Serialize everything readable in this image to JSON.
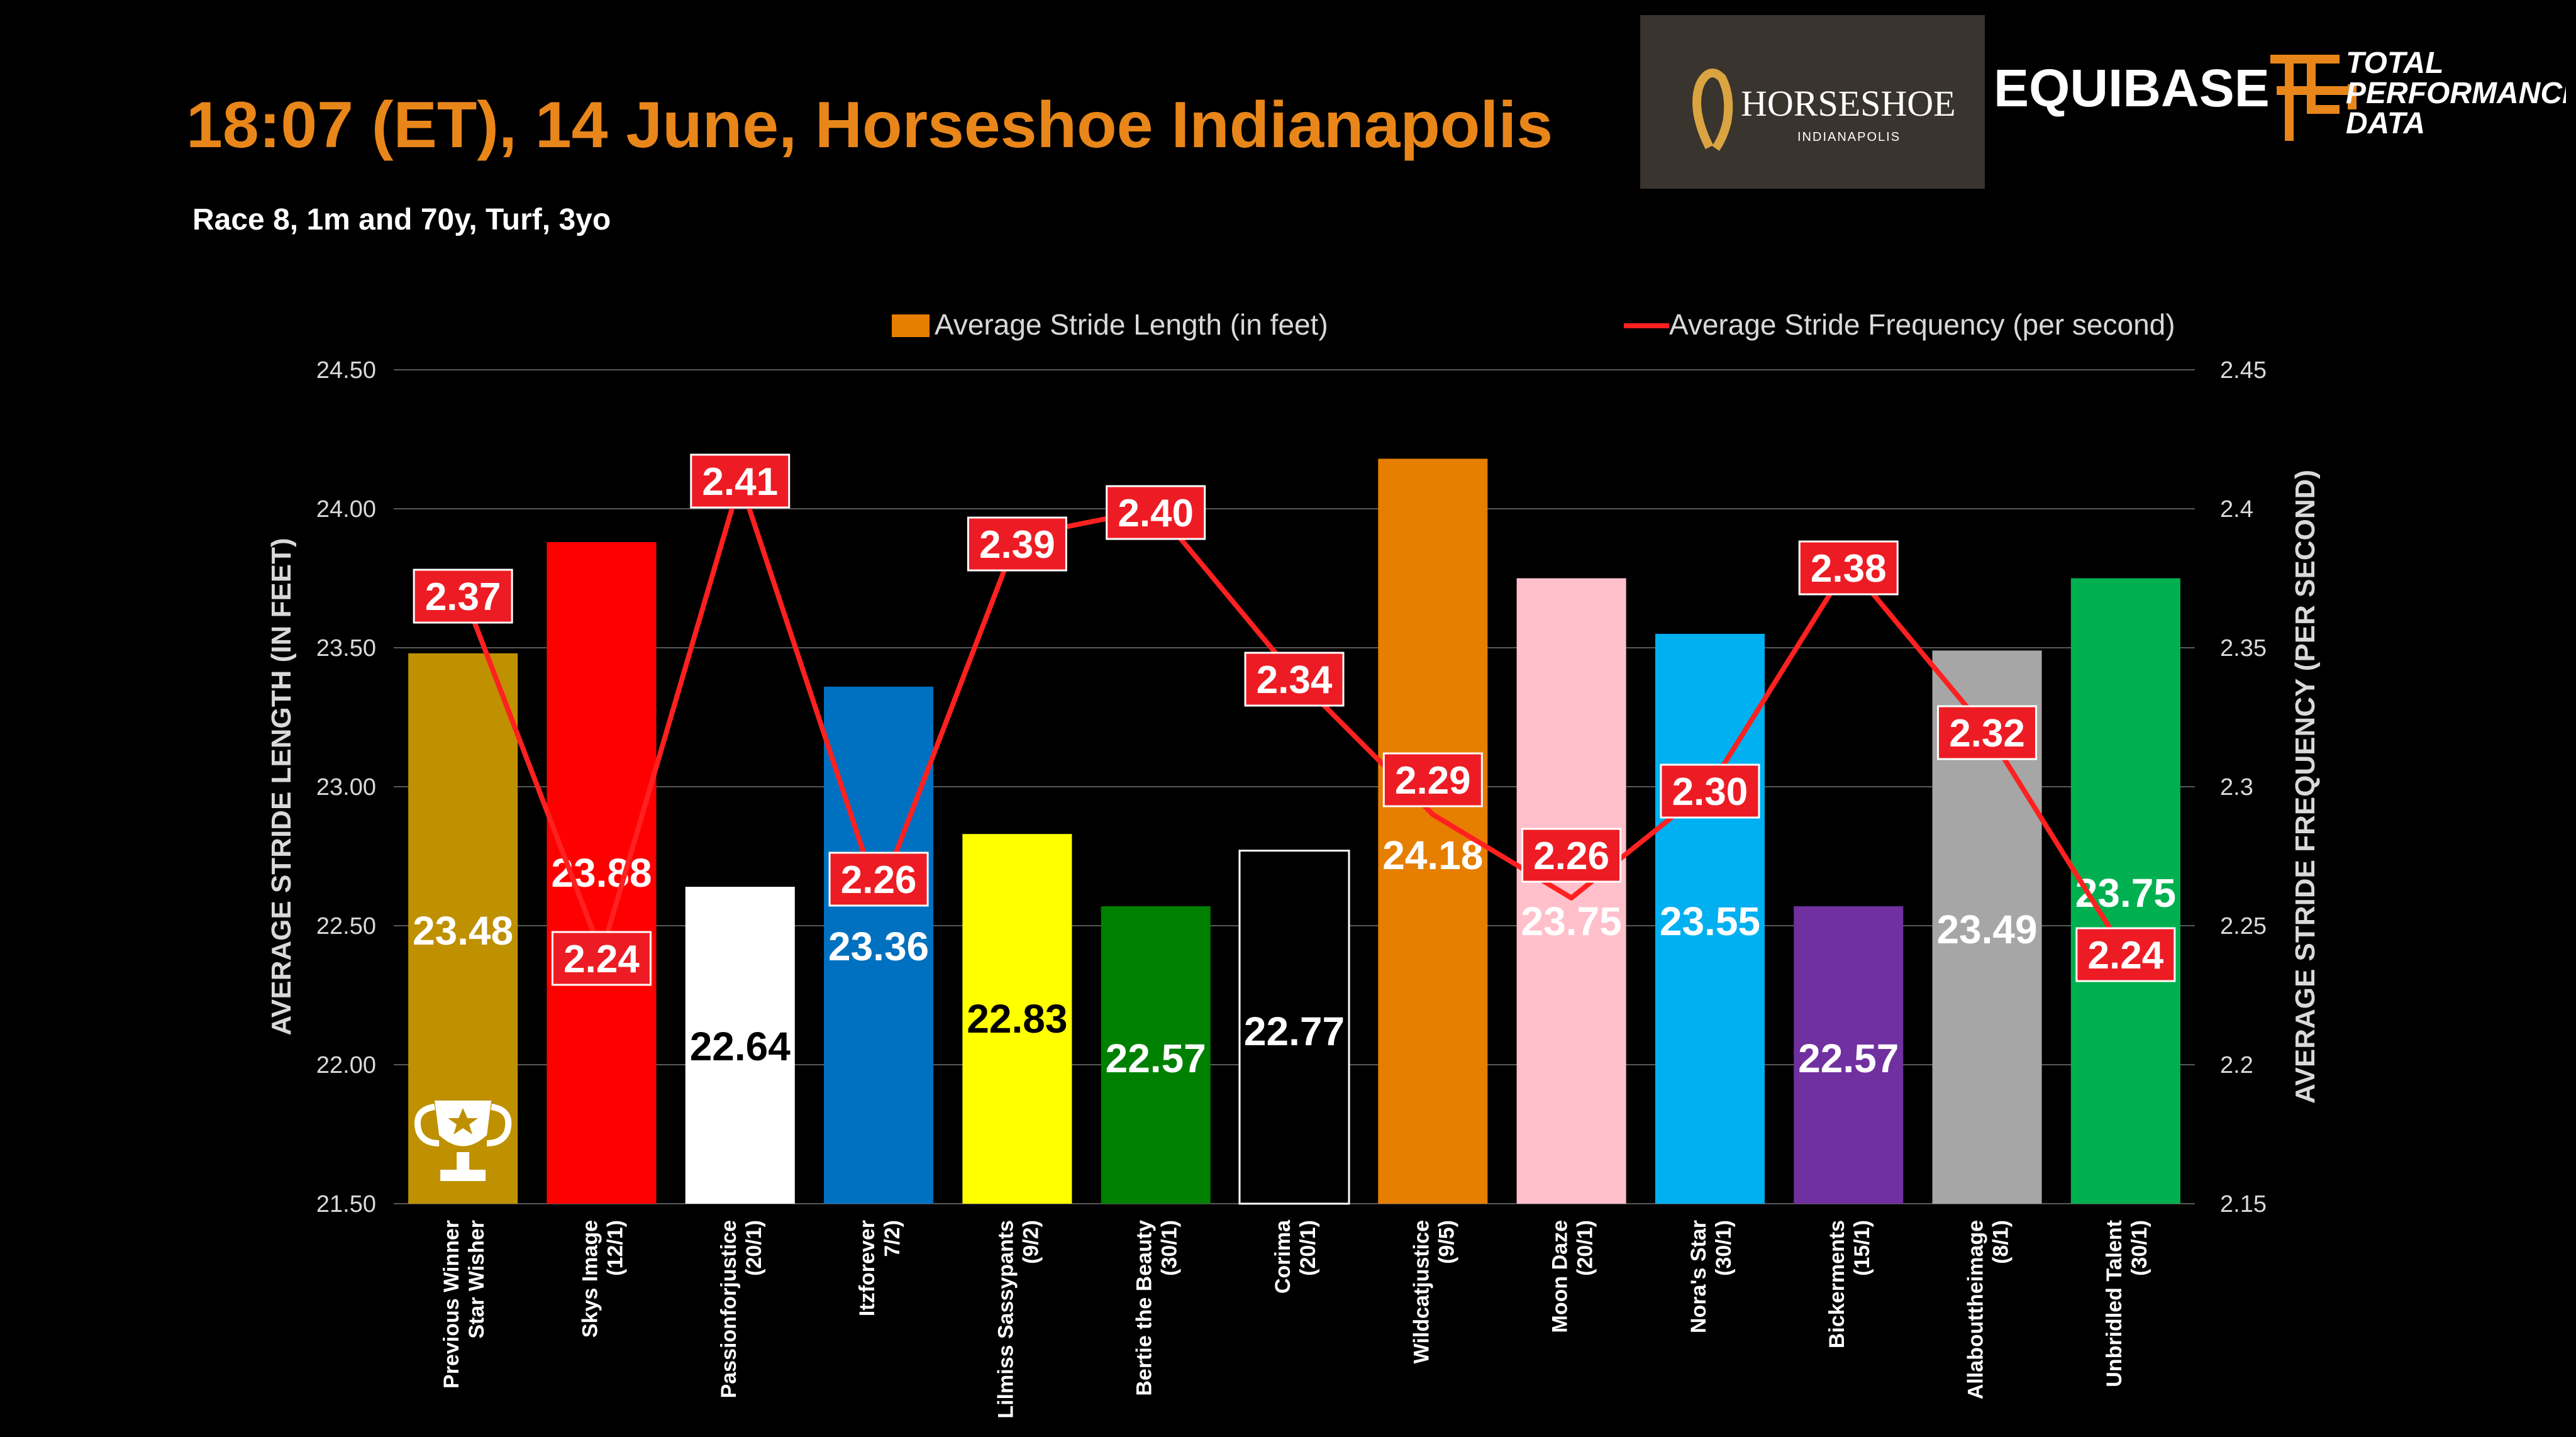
{
  "header": {
    "title": "18:07 (ET), 14 June, Horseshoe Indianapolis",
    "subtitle": "Race 8, 1m and 70y, Turf, 3yo"
  },
  "logos": {
    "horseshoe_main": "HORSESHOE",
    "horseshoe_sub": "INDIANAPOLIS",
    "equibase": "EQUIBASE",
    "tpd_lines": [
      "TOTAL",
      "PERFORMANCE",
      "DATA"
    ]
  },
  "chart_data": {
    "type": "bar",
    "legend_position": "top",
    "categories": [
      [
        "Previous Winner",
        "Star Wisher"
      ],
      [
        "Skys Image",
        "(12/1)"
      ],
      [
        "Passionforjustice",
        "(20/1)"
      ],
      [
        "Itzforever",
        "7/2)"
      ],
      [
        "Lilmiss Sassypants",
        "(9/2)"
      ],
      [
        "Bertie the Beauty",
        "(30/1)"
      ],
      [
        "Corima",
        "(20/1)"
      ],
      [
        "Wildcatjustice",
        "(9/5)"
      ],
      [
        "Moon Daze",
        "(20/1)"
      ],
      [
        "Nora's Star",
        "(30/1)"
      ],
      [
        "Bickerments",
        "(15/1)"
      ],
      [
        "Allabouttheimage",
        "(8/1)"
      ],
      [
        "Unbridled Talent",
        "(30/1)"
      ]
    ],
    "series": [
      {
        "name": "Average Stride Length (in feet)",
        "type": "bar",
        "axis": "left",
        "values": [
          23.48,
          23.88,
          22.64,
          23.36,
          22.83,
          22.57,
          22.77,
          24.18,
          23.75,
          23.55,
          22.57,
          23.49,
          23.75
        ],
        "labels": [
          "23.48",
          "23.88",
          "22.64",
          "23.36",
          "22.83",
          "22.57",
          "22.77",
          "24.18",
          "23.75",
          "23.55",
          "22.57",
          "23.49",
          "23.75"
        ],
        "colors": [
          "#bf9000",
          "#ff0000",
          "#ffffff",
          "#0070c0",
          "#ffff00",
          "#008000",
          "#000000",
          "#e67e00",
          "#ffc0cb",
          "#00b0f0",
          "#7030a0",
          "#a6a6a6",
          "#00b050"
        ],
        "label_colors": [
          "#ffffff",
          "#ffffff",
          "#000000",
          "#ffffff",
          "#000000",
          "#ffffff",
          "#ffffff",
          "#ffffff",
          "#ffffff",
          "#ffffff",
          "#ffffff",
          "#ffffff",
          "#ffffff"
        ],
        "legend_color": "#e67e00"
      },
      {
        "name": "Average Stride Frequency (per second)",
        "type": "line",
        "axis": "right",
        "values": [
          2.37,
          2.24,
          2.41,
          2.26,
          2.39,
          2.4,
          2.34,
          2.29,
          2.26,
          2.3,
          2.38,
          2.32,
          2.24
        ],
        "labels": [
          "2.37",
          "2.24",
          "2.41",
          "2.26",
          "2.39",
          "2.40",
          "2.34",
          "2.29",
          "2.26",
          "2.30",
          "2.38",
          "2.32",
          "2.24"
        ],
        "color": "#ff2020"
      }
    ],
    "ylabel": "AVERAGE STRIDE LENGTH (IN FEET)",
    "y2label": "AVERAGE STRIDE FREQUENCY (PER SECOND)",
    "ylim": [
      21.5,
      24.5
    ],
    "y2lim": [
      2.15,
      2.45
    ],
    "yticks": [
      "21.50",
      "22.00",
      "22.50",
      "23.00",
      "23.50",
      "24.00",
      "24.50"
    ],
    "y2ticks": [
      "2.15",
      "2.2",
      "2.25",
      "2.3",
      "2.35",
      "2.4",
      "2.45"
    ],
    "gridlines": true,
    "icons": [
      "trophy-icon"
    ]
  }
}
